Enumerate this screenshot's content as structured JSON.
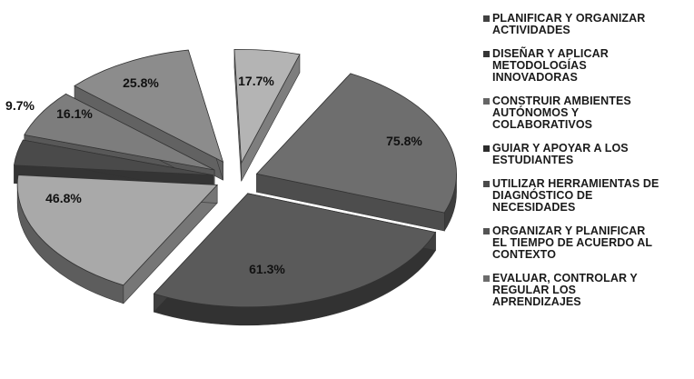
{
  "chart_data": {
    "type": "pie",
    "title": "",
    "legend_position": "right",
    "exploded": true,
    "three_d": true,
    "slices": [
      {
        "label": "PLANIFICAR Y ORGANIZAR\nACTIVIDADES",
        "value_label": "75.8%",
        "value": 75.8,
        "color": "#6e6e6e"
      },
      {
        "label": "DISEÑAR Y APLICAR\nMETODOLOGÍAS\nINNOVADORAS",
        "value_label": "61.3%",
        "value": 61.3,
        "color": "#5a5a5a"
      },
      {
        "label": "CONSTRUIR AMBIENTES\nAUTÓNOMOS Y\nCOLABORATIVOS",
        "value_label": "46.8%",
        "value": 46.8,
        "color": "#a9a9a9"
      },
      {
        "label": "GUIAR Y APOYAR A LOS\nESTUDIANTES",
        "value_label": "9.7%",
        "value": 9.7,
        "color": "#4a4a4a"
      },
      {
        "label": "UTILIZAR HERRAMIENTAS DE\nDIAGNÓSTICO DE\nNECESIDADES",
        "value_label": "16.1%",
        "value": 16.1,
        "color": "#7d7d7d"
      },
      {
        "label": "ORGANIZAR Y PLANIFICAR\nEL TIEMPO DE ACUERDO AL\nCONTEXTO",
        "value_label": "25.8%",
        "value": 25.8,
        "color": "#8c8c8c"
      },
      {
        "label": "EVALUAR, CONTROLAR Y\nREGULAR LOS\nAPRENDIZAJES",
        "value_label": "17.7%",
        "value": 17.7,
        "color": "#b4b4b4"
      }
    ]
  }
}
